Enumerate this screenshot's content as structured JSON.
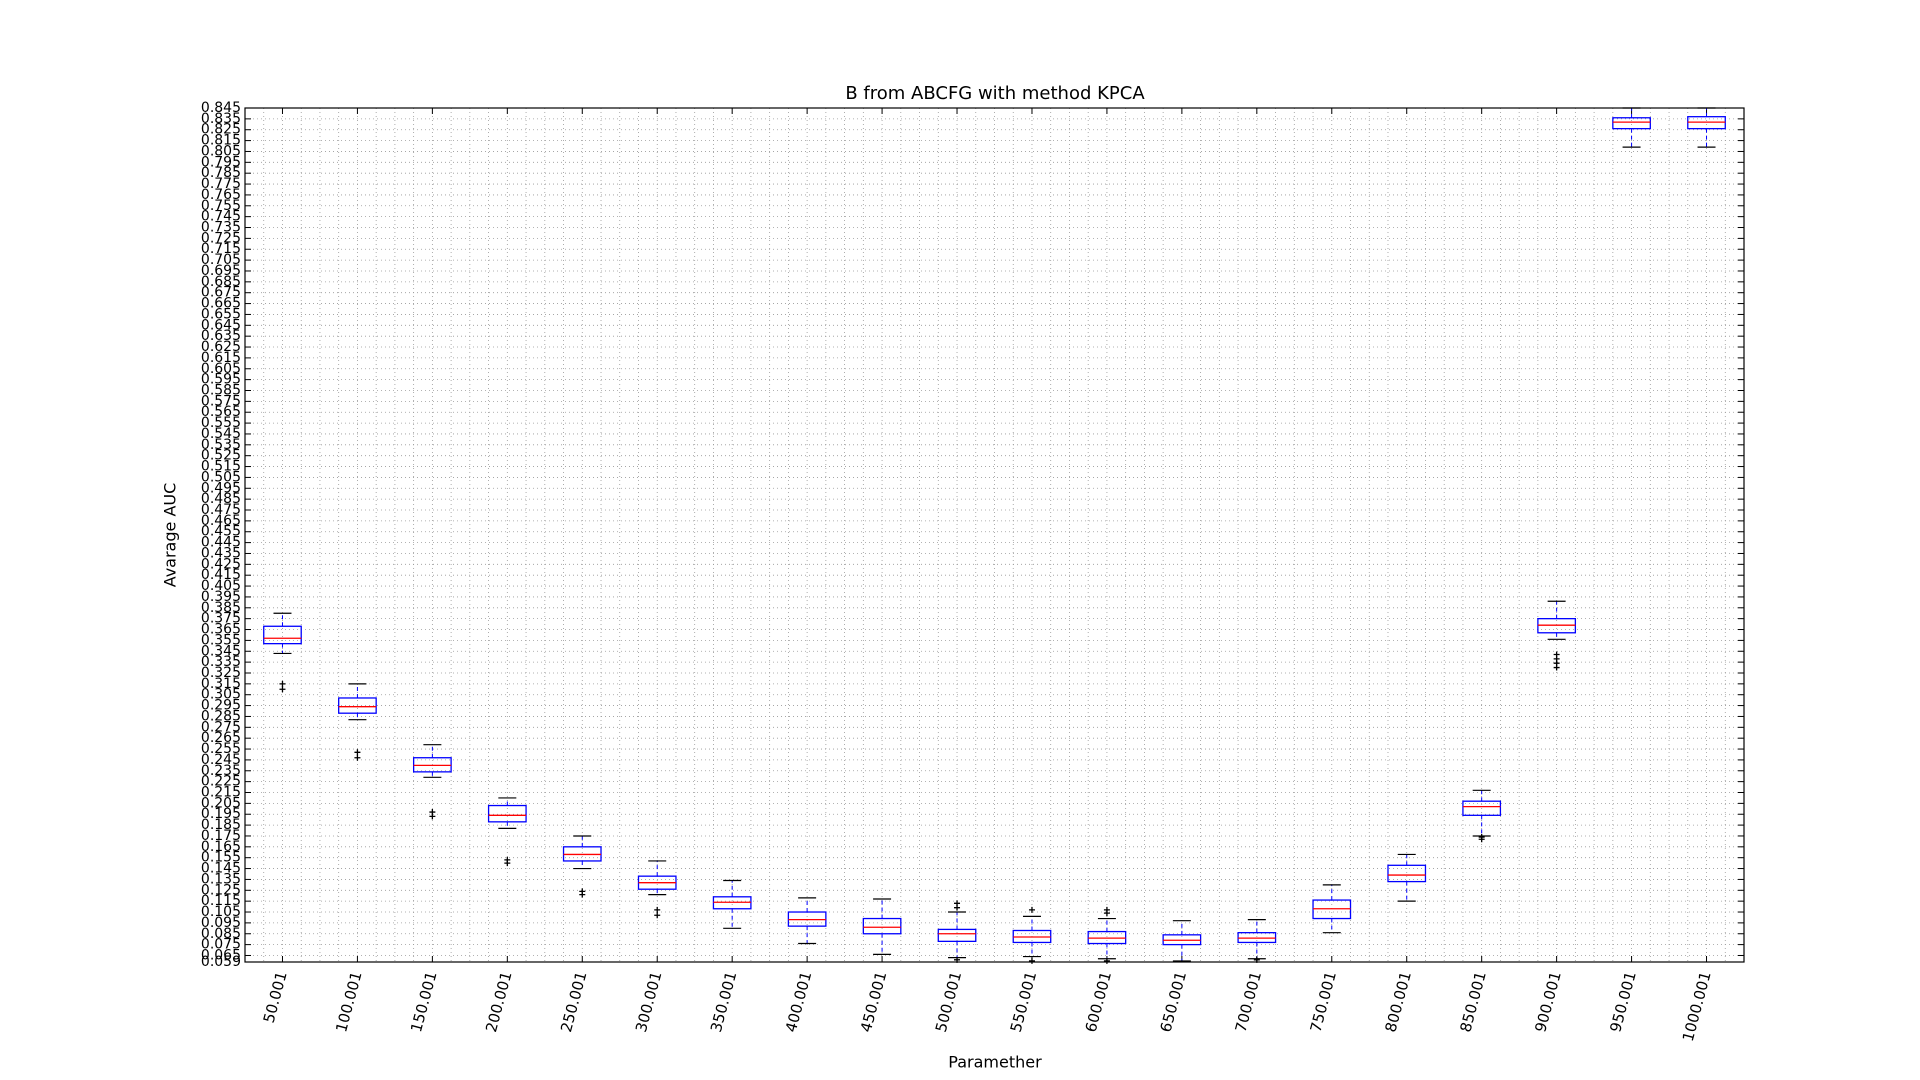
{
  "chart_data": {
    "type": "box",
    "title": "B from ABCFG with method KPCA",
    "x_label": "Paramether",
    "y_label": "Avarage AUC",
    "categories": [
      "50.001",
      "100.001",
      "150.001",
      "200.001",
      "250.001",
      "300.001",
      "350.001",
      "400.001",
      "450.001",
      "500.001",
      "550.001",
      "600.001",
      "650.001",
      "700.001",
      "750.001",
      "800.001",
      "850.001",
      "900.001",
      "950.001",
      "1000.001"
    ],
    "boxes": [
      {
        "whislo": 0.343,
        "q1": 0.352,
        "med": 0.357,
        "q3": 0.368,
        "whishi": 0.38,
        "fliers": [
          0.315,
          0.31
        ]
      },
      {
        "whislo": 0.282,
        "q1": 0.288,
        "med": 0.294,
        "q3": 0.302,
        "whishi": 0.315,
        "fliers": [
          0.252,
          0.247
        ]
      },
      {
        "whislo": 0.229,
        "q1": 0.234,
        "med": 0.24,
        "q3": 0.247,
        "whishi": 0.259,
        "fliers": [
          0.197,
          0.193
        ]
      },
      {
        "whislo": 0.182,
        "q1": 0.188,
        "med": 0.194,
        "q3": 0.203,
        "whishi": 0.21,
        "fliers": [
          0.153,
          0.15
        ]
      },
      {
        "whislo": 0.145,
        "q1": 0.152,
        "med": 0.158,
        "q3": 0.165,
        "whishi": 0.175,
        "fliers": [
          0.124,
          0.121
        ]
      },
      {
        "whislo": 0.121,
        "q1": 0.126,
        "med": 0.132,
        "q3": 0.138,
        "whishi": 0.152,
        "fliers": [
          0.107,
          0.102
        ]
      },
      {
        "whislo": 0.09,
        "q1": 0.108,
        "med": 0.114,
        "q3": 0.119,
        "whishi": 0.134,
        "fliers": []
      },
      {
        "whislo": 0.076,
        "q1": 0.092,
        "med": 0.098,
        "q3": 0.105,
        "whishi": 0.118,
        "fliers": []
      },
      {
        "whislo": 0.066,
        "q1": 0.085,
        "med": 0.091,
        "q3": 0.099,
        "whishi": 0.117,
        "fliers": []
      },
      {
        "whislo": 0.063,
        "q1": 0.078,
        "med": 0.085,
        "q3": 0.089,
        "whishi": 0.105,
        "fliers": [
          0.113,
          0.109,
          0.061
        ]
      },
      {
        "whislo": 0.064,
        "q1": 0.077,
        "med": 0.082,
        "q3": 0.088,
        "whishi": 0.101,
        "fliers": [
          0.107,
          0.06
        ]
      },
      {
        "whislo": 0.062,
        "q1": 0.076,
        "med": 0.081,
        "q3": 0.087,
        "whishi": 0.099,
        "fliers": [
          0.107,
          0.104,
          0.06
        ]
      },
      {
        "whislo": 0.06,
        "q1": 0.075,
        "med": 0.079,
        "q3": 0.084,
        "whishi": 0.097,
        "fliers": []
      },
      {
        "whislo": 0.062,
        "q1": 0.077,
        "med": 0.081,
        "q3": 0.086,
        "whishi": 0.098,
        "fliers": [
          0.061
        ]
      },
      {
        "whislo": 0.086,
        "q1": 0.099,
        "med": 0.108,
        "q3": 0.116,
        "whishi": 0.13,
        "fliers": []
      },
      {
        "whislo": 0.115,
        "q1": 0.133,
        "med": 0.139,
        "q3": 0.148,
        "whishi": 0.158,
        "fliers": []
      },
      {
        "whislo": 0.175,
        "q1": 0.194,
        "med": 0.202,
        "q3": 0.207,
        "whishi": 0.217,
        "fliers": [
          0.174,
          0.172
        ]
      },
      {
        "whislo": 0.356,
        "q1": 0.362,
        "med": 0.369,
        "q3": 0.375,
        "whishi": 0.391,
        "fliers": [
          0.342,
          0.338,
          0.334,
          0.33
        ]
      },
      {
        "whislo": 0.809,
        "q1": 0.826,
        "med": 0.832,
        "q3": 0.836,
        "whishi": 0.845,
        "fliers": []
      },
      {
        "whislo": 0.809,
        "q1": 0.826,
        "med": 0.832,
        "q3": 0.837,
        "whishi": 0.845,
        "fliers": []
      }
    ],
    "box_color": "#0000ff",
    "median_color": "#ff0000",
    "whisker_color": "#000000",
    "ylim": [
      0.059,
      0.845
    ],
    "yticks": [
      0.059,
      0.065,
      0.075,
      0.085,
      0.095,
      0.105,
      0.115,
      0.125,
      0.135,
      0.145,
      0.155,
      0.165,
      0.175,
      0.185,
      0.195,
      0.205,
      0.215,
      0.225,
      0.235,
      0.245,
      0.255,
      0.265,
      0.275,
      0.285,
      0.295,
      0.305,
      0.315,
      0.325,
      0.335,
      0.345,
      0.355,
      0.365,
      0.375,
      0.385,
      0.395,
      0.405,
      0.415,
      0.425,
      0.435,
      0.445,
      0.455,
      0.465,
      0.475,
      0.485,
      0.495,
      0.505,
      0.515,
      0.525,
      0.535,
      0.545,
      0.555,
      0.565,
      0.575,
      0.585,
      0.595,
      0.605,
      0.615,
      0.625,
      0.635,
      0.645,
      0.655,
      0.665,
      0.675,
      0.685,
      0.695,
      0.705,
      0.715,
      0.725,
      0.735,
      0.745,
      0.755,
      0.765,
      0.775,
      0.785,
      0.795,
      0.805,
      0.815,
      0.825,
      0.835,
      0.845
    ],
    "grid": true
  }
}
